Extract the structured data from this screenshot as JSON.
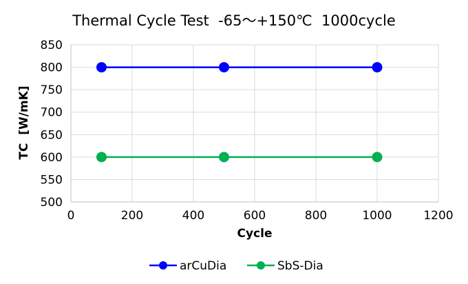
{
  "chart_data": {
    "type": "line",
    "title": "Thermal Cycle Test  -65～+150℃  1000cycle",
    "xlabel": "Cycle",
    "ylabel": "TC  [W/mK]",
    "xlim": [
      0,
      1200
    ],
    "ylim": [
      500,
      850
    ],
    "xticks": [
      0,
      200,
      400,
      600,
      800,
      1000,
      1200
    ],
    "yticks": [
      500,
      550,
      600,
      650,
      700,
      750,
      800,
      850
    ],
    "grid": true,
    "legend_position": "bottom",
    "series": [
      {
        "name": "arCuDia",
        "color": "#0000ff",
        "x": [
          100,
          500,
          1000
        ],
        "y": [
          800,
          800,
          800
        ]
      },
      {
        "name": "SbS-Dia",
        "color": "#00b050",
        "x": [
          100,
          500,
          1000
        ],
        "y": [
          600,
          600,
          600
        ]
      }
    ]
  }
}
